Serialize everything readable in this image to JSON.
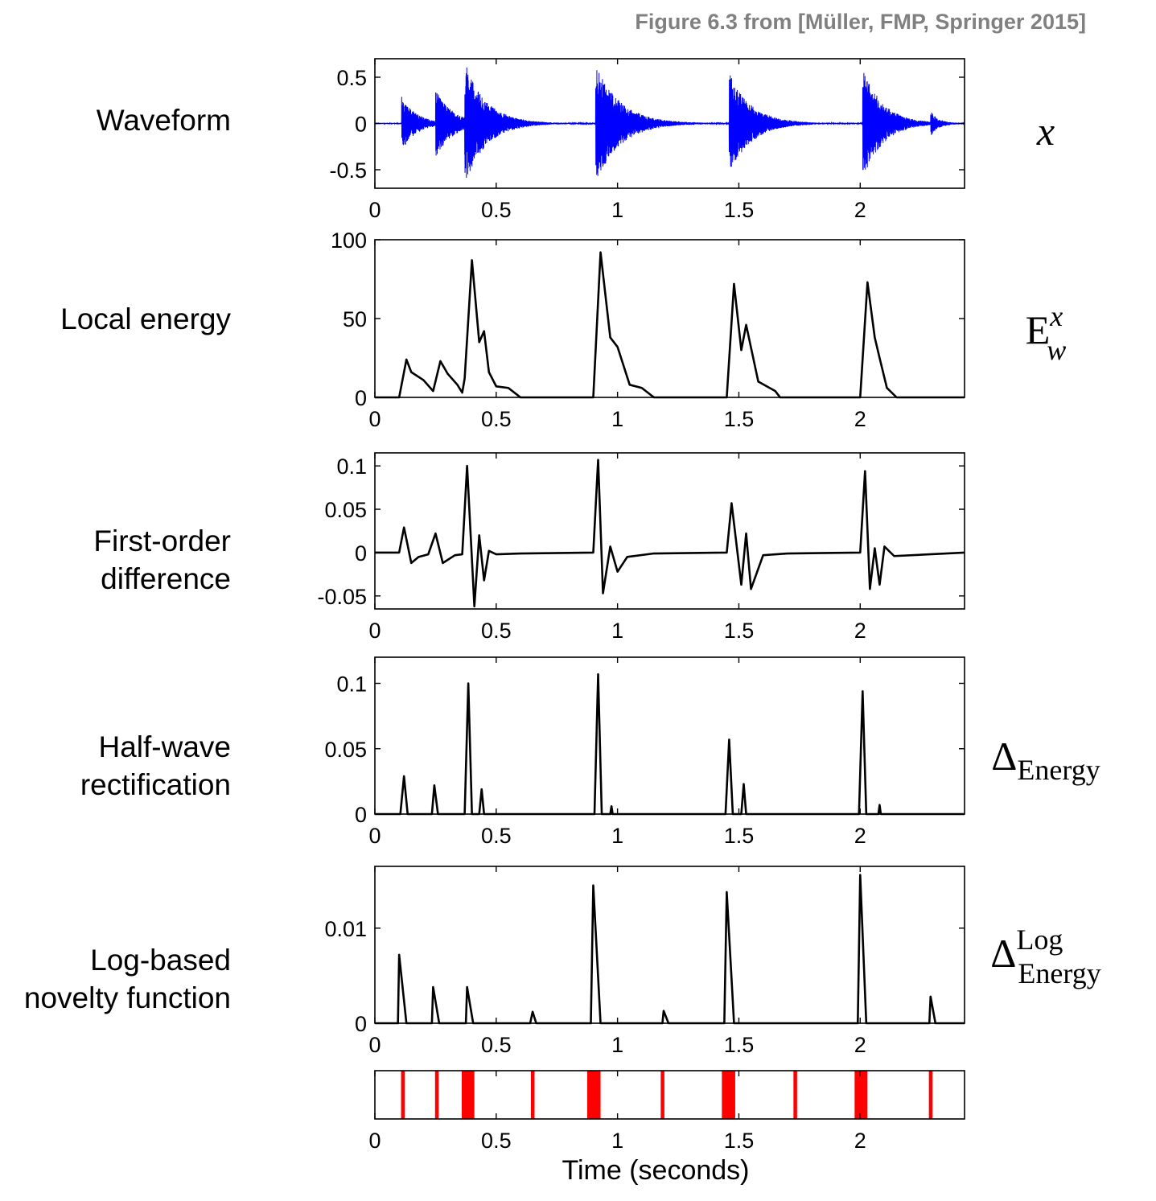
{
  "credit": "Figure 6.3 from [Müller, FMP, Springer 2015]",
  "xlabel": "Time (seconds)",
  "chart_data": [
    {
      "type": "line",
      "row_label": [
        "Waveform"
      ],
      "symbol": {
        "base": "x",
        "sub": "",
        "sup": ""
      },
      "color": "#0000ff",
      "xlim": [
        0,
        2.43
      ],
      "ylim": [
        -0.7,
        0.7
      ],
      "xticks": [
        {
          "v": 0,
          "t": "0"
        },
        {
          "v": 0.5,
          "t": "0.5"
        },
        {
          "v": 1,
          "t": "1"
        },
        {
          "v": 1.5,
          "t": "1.5"
        },
        {
          "v": 2,
          "t": "2"
        }
      ],
      "yticks": [
        {
          "v": 0.5,
          "t": "0.5"
        },
        {
          "v": 0,
          "t": "0"
        },
        {
          "v": -0.5,
          "t": "-0.5"
        }
      ],
      "bursts": [
        {
          "t": 0.11,
          "amp": 0.3,
          "decay": 0.06
        },
        {
          "t": 0.25,
          "amp": 0.35,
          "decay": 0.07
        },
        {
          "t": 0.37,
          "amp": 0.6,
          "decay": 0.09
        },
        {
          "t": 0.91,
          "amp": 0.65,
          "decay": 0.1
        },
        {
          "t": 1.46,
          "amp": 0.55,
          "decay": 0.09
        },
        {
          "t": 2.01,
          "amp": 0.62,
          "decay": 0.08
        },
        {
          "t": 2.29,
          "amp": 0.12,
          "decay": 0.03
        }
      ]
    },
    {
      "type": "line",
      "row_label": [
        "Local energy"
      ],
      "symbol": {
        "base": "E",
        "sub": "w",
        "sup": "x"
      },
      "color": "#000000",
      "xlim": [
        0,
        2.43
      ],
      "ylim": [
        0,
        100
      ],
      "xticks": [
        {
          "v": 0,
          "t": "0"
        },
        {
          "v": 0.5,
          "t": "0.5"
        },
        {
          "v": 1,
          "t": "1"
        },
        {
          "v": 1.5,
          "t": "1.5"
        },
        {
          "v": 2,
          "t": "2"
        }
      ],
      "yticks": [
        {
          "v": 100,
          "t": "100"
        },
        {
          "v": 50,
          "t": "50"
        },
        {
          "v": 0,
          "t": "0"
        }
      ],
      "x": [
        0,
        0.1,
        0.13,
        0.15,
        0.2,
        0.24,
        0.27,
        0.3,
        0.34,
        0.36,
        0.37,
        0.4,
        0.43,
        0.45,
        0.47,
        0.5,
        0.55,
        0.6,
        0.9,
        0.93,
        0.97,
        1.0,
        1.05,
        1.1,
        1.15,
        1.45,
        1.48,
        1.51,
        1.53,
        1.58,
        1.65,
        1.67,
        2.0,
        2.03,
        2.06,
        2.08,
        2.11,
        2.15,
        2.43
      ],
      "y": [
        0,
        0,
        24,
        16,
        11,
        4,
        23,
        15,
        8,
        3,
        12,
        87,
        35,
        42,
        16,
        7,
        6,
        0,
        0,
        92,
        38,
        32,
        8,
        6,
        0,
        0,
        72,
        30,
        46,
        10,
        4,
        0,
        0,
        73,
        38,
        25,
        6,
        0,
        0
      ]
    },
    {
      "type": "line",
      "row_label": [
        "First-order",
        "difference"
      ],
      "symbol": {
        "base": "",
        "sub": "",
        "sup": ""
      },
      "color": "#000000",
      "xlim": [
        0,
        2.43
      ],
      "ylim": [
        -0.065,
        0.115
      ],
      "xticks": [
        {
          "v": 0,
          "t": "0"
        },
        {
          "v": 0.5,
          "t": "0.5"
        },
        {
          "v": 1,
          "t": "1"
        },
        {
          "v": 1.5,
          "t": "1.5"
        },
        {
          "v": 2,
          "t": "2"
        }
      ],
      "yticks": [
        {
          "v": 0.1,
          "t": "0.1"
        },
        {
          "v": 0.05,
          "t": "0.05"
        },
        {
          "v": 0,
          "t": "0"
        },
        {
          "v": -0.05,
          "t": "-0.05"
        }
      ],
      "x": [
        0,
        0.1,
        0.12,
        0.15,
        0.18,
        0.22,
        0.25,
        0.28,
        0.33,
        0.36,
        0.38,
        0.41,
        0.43,
        0.45,
        0.47,
        0.5,
        0.6,
        0.9,
        0.92,
        0.94,
        0.97,
        1.0,
        1.04,
        1.15,
        1.45,
        1.47,
        1.51,
        1.53,
        1.55,
        1.6,
        1.7,
        2.0,
        2.02,
        2.04,
        2.06,
        2.08,
        2.1,
        2.14,
        2.43
      ],
      "y": [
        0,
        0,
        0.029,
        -0.012,
        -0.005,
        -0.002,
        0.022,
        -0.012,
        -0.003,
        -0.002,
        0.1,
        -0.062,
        0.02,
        -0.032,
        0.002,
        -0.002,
        -0.001,
        0,
        0.107,
        -0.047,
        0.007,
        -0.022,
        -0.005,
        -0.001,
        0,
        0.057,
        -0.037,
        0.022,
        -0.042,
        -0.003,
        -0.001,
        0,
        0.094,
        -0.042,
        0.005,
        -0.037,
        0.007,
        -0.004,
        0
      ]
    },
    {
      "type": "line",
      "row_label": [
        "Half-wave",
        "rectification"
      ],
      "symbol": {
        "base": "Δ",
        "sub": "Energy",
        "sup": ""
      },
      "color": "#000000",
      "xlim": [
        0,
        2.43
      ],
      "ylim": [
        0,
        0.12
      ],
      "xticks": [
        {
          "v": 0,
          "t": "0"
        },
        {
          "v": 0.5,
          "t": "0.5"
        },
        {
          "v": 1,
          "t": "1"
        },
        {
          "v": 1.5,
          "t": "1.5"
        },
        {
          "v": 2,
          "t": "2"
        }
      ],
      "yticks": [
        {
          "v": 0.1,
          "t": "0.1"
        },
        {
          "v": 0.05,
          "t": "0.05"
        },
        {
          "v": 0,
          "t": "0"
        }
      ],
      "x": [
        0,
        0.105,
        0.12,
        0.135,
        0.235,
        0.245,
        0.26,
        0.37,
        0.385,
        0.4,
        0.43,
        0.44,
        0.45,
        0.5,
        0.905,
        0.92,
        0.935,
        0.97,
        0.975,
        0.98,
        1.445,
        1.46,
        1.475,
        1.51,
        1.52,
        1.53,
        1.995,
        2.01,
        2.025,
        2.075,
        2.08,
        2.085,
        2.43
      ],
      "y": [
        0,
        0,
        0.029,
        0,
        0,
        0.022,
        0,
        0,
        0.1,
        0,
        0,
        0.019,
        0,
        0,
        0,
        0.107,
        0,
        0,
        0.006,
        0,
        0,
        0.057,
        0,
        0,
        0.023,
        0,
        0,
        0.094,
        0,
        0,
        0.007,
        0,
        0
      ]
    },
    {
      "type": "line",
      "row_label": [
        "Log-based",
        "novelty function"
      ],
      "symbol": {
        "base": "Δ",
        "sub": "Energy",
        "sup": "Log"
      },
      "color": "#000000",
      "xlim": [
        0,
        2.43
      ],
      "ylim": [
        0,
        0.0165
      ],
      "xticks": [
        {
          "v": 0,
          "t": "0"
        },
        {
          "v": 0.5,
          "t": "0.5"
        },
        {
          "v": 1,
          "t": "1"
        },
        {
          "v": 1.5,
          "t": "1.5"
        },
        {
          "v": 2,
          "t": "2"
        }
      ],
      "yticks": [
        {
          "v": 0.01,
          "t": "0.01"
        },
        {
          "v": 0,
          "t": "0"
        }
      ],
      "x": [
        0,
        0.095,
        0.1,
        0.13,
        0.235,
        0.24,
        0.265,
        0.375,
        0.38,
        0.405,
        0.64,
        0.65,
        0.665,
        0.89,
        0.9,
        0.93,
        1.185,
        1.19,
        1.21,
        1.44,
        1.45,
        1.48,
        1.99,
        2.0,
        2.025,
        2.285,
        2.29,
        2.31,
        2.43
      ],
      "y": [
        0,
        0,
        0.0072,
        0,
        0,
        0.0038,
        0,
        0,
        0.0038,
        0,
        0,
        0.0012,
        0,
        0,
        0.0145,
        0,
        0,
        0.0013,
        0,
        0,
        0.0138,
        0,
        0,
        0.0156,
        0,
        0,
        0.0028,
        0,
        0
      ]
    },
    {
      "type": "bar",
      "row_label": [],
      "symbol": {
        "base": "",
        "sub": "",
        "sup": ""
      },
      "color": "#ff0000",
      "xlim": [
        0,
        2.43
      ],
      "xticks": [
        {
          "v": 0,
          "t": "0"
        },
        {
          "v": 0.5,
          "t": "0.5"
        },
        {
          "v": 1,
          "t": "1"
        },
        {
          "v": 1.5,
          "t": "1.5"
        },
        {
          "v": 2,
          "t": "2"
        }
      ],
      "events": [
        {
          "start": 0.108,
          "end": 0.123
        },
        {
          "start": 0.248,
          "end": 0.263
        },
        {
          "start": 0.358,
          "end": 0.41
        },
        {
          "start": 0.643,
          "end": 0.658
        },
        {
          "start": 0.875,
          "end": 0.93
        },
        {
          "start": 1.178,
          "end": 1.193
        },
        {
          "start": 1.43,
          "end": 1.485
        },
        {
          "start": 1.725,
          "end": 1.74
        },
        {
          "start": 1.977,
          "end": 2.03
        },
        {
          "start": 2.283,
          "end": 2.298
        }
      ]
    }
  ]
}
